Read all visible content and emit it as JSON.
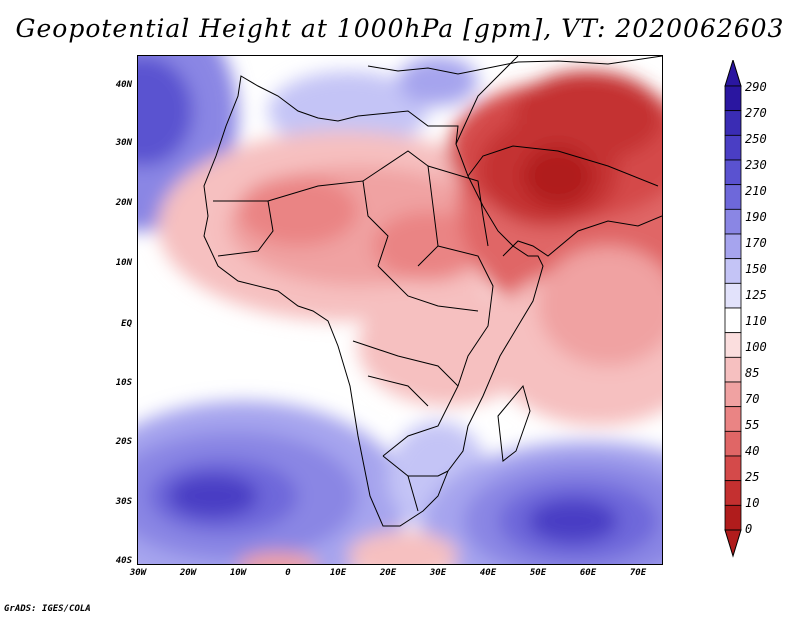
{
  "title": "Geopotential Height at 1000hPa [gpm], VT: 2020062603",
  "credit": "GrADS: IGES/COLA",
  "axes": {
    "lat_labels": [
      "40N",
      "30N",
      "20N",
      "10N",
      "EQ",
      "10S",
      "20S",
      "30S",
      "40S"
    ],
    "lon_labels": [
      "30W",
      "20W",
      "10W",
      "0",
      "10E",
      "20E",
      "30E",
      "40E",
      "50E",
      "60E",
      "70E"
    ]
  },
  "colorbar": {
    "levels": [
      "290",
      "270",
      "250",
      "230",
      "210",
      "190",
      "170",
      "150",
      "125",
      "110",
      "100",
      "85",
      "70",
      "55",
      "40",
      "25",
      "10",
      "0"
    ],
    "colors": [
      "#2a16a0",
      "#3a2cb4",
      "#4a3ec4",
      "#5a52d0",
      "#6e68da",
      "#8a86e4",
      "#a6a4ee",
      "#c4c4f6",
      "#e2e2fb",
      "#ffffff",
      "#fbdede",
      "#f6c0c0",
      "#f0a2a2",
      "#ea8484",
      "#e06666",
      "#d44a4a",
      "#c43030",
      "#b01c1c"
    ]
  }
}
